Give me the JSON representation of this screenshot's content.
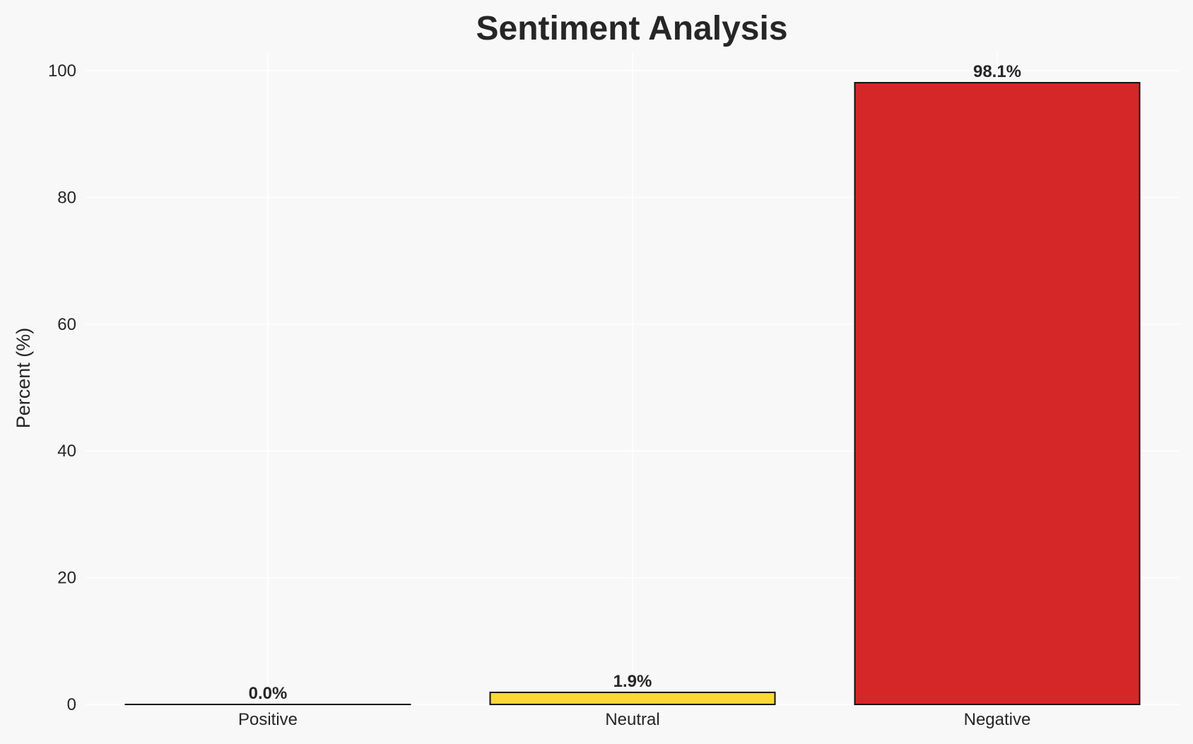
{
  "chart_data": {
    "type": "bar",
    "title": "Sentiment Analysis",
    "xlabel": "",
    "ylabel": "Percent (%)",
    "categories": [
      "Positive",
      "Neutral",
      "Negative"
    ],
    "values": [
      0.0,
      1.9,
      98.1
    ],
    "data_labels": [
      "0.0%",
      "1.9%",
      "98.1%"
    ],
    "colors": [
      "#2ca02c",
      "#fdd835",
      "#d62728"
    ],
    "ylim": [
      0,
      103
    ],
    "yticks": [
      0,
      20,
      40,
      60,
      80,
      100
    ],
    "grid": true
  }
}
